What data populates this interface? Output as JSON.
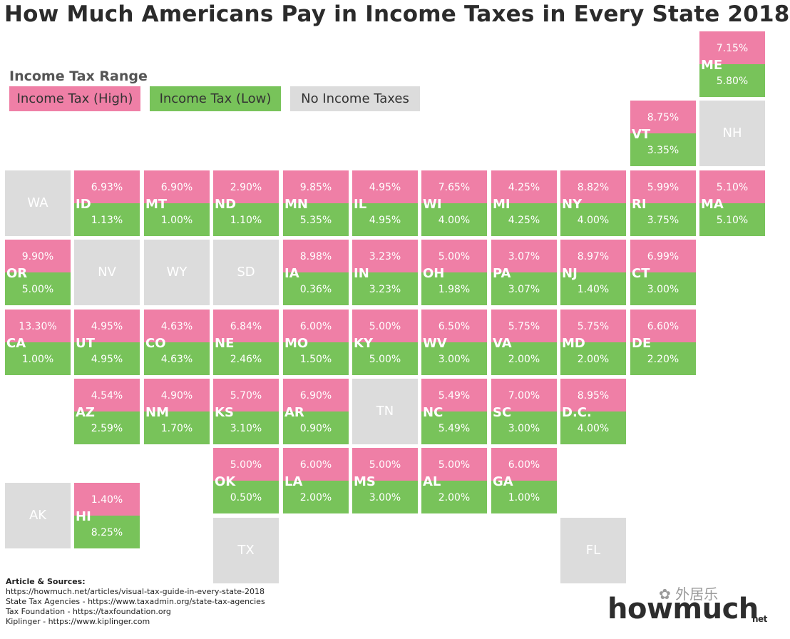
{
  "title": "How Much Americans Pay in Income Taxes in Every State 2018",
  "legend": {
    "title": "Income Tax Range",
    "high": "Income Tax (High)",
    "low": "Income Tax (Low)",
    "none": "No Income Taxes"
  },
  "colors": {
    "high": "#ef7fa6",
    "low": "#78c35a",
    "none": "#dcdcdc"
  },
  "states": [
    {
      "abbr": "ME",
      "row": 0,
      "col": 10,
      "high": "7.15%",
      "low": "5.80%"
    },
    {
      "abbr": "VT",
      "row": 1,
      "col": 9,
      "high": "8.75%",
      "low": "3.35%"
    },
    {
      "abbr": "NH",
      "row": 1,
      "col": 10,
      "none": true
    },
    {
      "abbr": "WA",
      "row": 2,
      "col": 0,
      "none": true
    },
    {
      "abbr": "ID",
      "row": 2,
      "col": 1,
      "high": "6.93%",
      "low": "1.13%"
    },
    {
      "abbr": "MT",
      "row": 2,
      "col": 2,
      "high": "6.90%",
      "low": "1.00%"
    },
    {
      "abbr": "ND",
      "row": 2,
      "col": 3,
      "high": "2.90%",
      "low": "1.10%"
    },
    {
      "abbr": "MN",
      "row": 2,
      "col": 4,
      "high": "9.85%",
      "low": "5.35%"
    },
    {
      "abbr": "IL",
      "row": 2,
      "col": 5,
      "high": "4.95%",
      "low": "4.95%"
    },
    {
      "abbr": "WI",
      "row": 2,
      "col": 6,
      "high": "7.65%",
      "low": "4.00%"
    },
    {
      "abbr": "MI",
      "row": 2,
      "col": 7,
      "high": "4.25%",
      "low": "4.25%"
    },
    {
      "abbr": "NY",
      "row": 2,
      "col": 8,
      "high": "8.82%",
      "low": "4.00%"
    },
    {
      "abbr": "RI",
      "row": 2,
      "col": 9,
      "high": "5.99%",
      "low": "3.75%"
    },
    {
      "abbr": "MA",
      "row": 2,
      "col": 10,
      "high": "5.10%",
      "low": "5.10%"
    },
    {
      "abbr": "OR",
      "row": 3,
      "col": 0,
      "high": "9.90%",
      "low": "5.00%"
    },
    {
      "abbr": "NV",
      "row": 3,
      "col": 1,
      "none": true
    },
    {
      "abbr": "WY",
      "row": 3,
      "col": 2,
      "none": true
    },
    {
      "abbr": "SD",
      "row": 3,
      "col": 3,
      "none": true
    },
    {
      "abbr": "IA",
      "row": 3,
      "col": 4,
      "high": "8.98%",
      "low": "0.36%"
    },
    {
      "abbr": "IN",
      "row": 3,
      "col": 5,
      "high": "3.23%",
      "low": "3.23%"
    },
    {
      "abbr": "OH",
      "row": 3,
      "col": 6,
      "high": "5.00%",
      "low": "1.98%"
    },
    {
      "abbr": "PA",
      "row": 3,
      "col": 7,
      "high": "3.07%",
      "low": "3.07%"
    },
    {
      "abbr": "NJ",
      "row": 3,
      "col": 8,
      "high": "8.97%",
      "low": "1.40%"
    },
    {
      "abbr": "CT",
      "row": 3,
      "col": 9,
      "high": "6.99%",
      "low": "3.00%"
    },
    {
      "abbr": "CA",
      "row": 4,
      "col": 0,
      "high": "13.30%",
      "low": "1.00%"
    },
    {
      "abbr": "UT",
      "row": 4,
      "col": 1,
      "high": "4.95%",
      "low": "4.95%"
    },
    {
      "abbr": "CO",
      "row": 4,
      "col": 2,
      "high": "4.63%",
      "low": "4.63%"
    },
    {
      "abbr": "NE",
      "row": 4,
      "col": 3,
      "high": "6.84%",
      "low": "2.46%"
    },
    {
      "abbr": "MO",
      "row": 4,
      "col": 4,
      "high": "6.00%",
      "low": "1.50%"
    },
    {
      "abbr": "KY",
      "row": 4,
      "col": 5,
      "high": "5.00%",
      "low": "5.00%"
    },
    {
      "abbr": "WV",
      "row": 4,
      "col": 6,
      "high": "6.50%",
      "low": "3.00%"
    },
    {
      "abbr": "VA",
      "row": 4,
      "col": 7,
      "high": "5.75%",
      "low": "2.00%"
    },
    {
      "abbr": "MD",
      "row": 4,
      "col": 8,
      "high": "5.75%",
      "low": "2.00%"
    },
    {
      "abbr": "DE",
      "row": 4,
      "col": 9,
      "high": "6.60%",
      "low": "2.20%"
    },
    {
      "abbr": "AZ",
      "row": 5,
      "col": 1,
      "high": "4.54%",
      "low": "2.59%"
    },
    {
      "abbr": "NM",
      "row": 5,
      "col": 2,
      "high": "4.90%",
      "low": "1.70%"
    },
    {
      "abbr": "KS",
      "row": 5,
      "col": 3,
      "high": "5.70%",
      "low": "3.10%"
    },
    {
      "abbr": "AR",
      "row": 5,
      "col": 4,
      "high": "6.90%",
      "low": "0.90%"
    },
    {
      "abbr": "TN",
      "row": 5,
      "col": 5,
      "none": true
    },
    {
      "abbr": "NC",
      "row": 5,
      "col": 6,
      "high": "5.49%",
      "low": "5.49%"
    },
    {
      "abbr": "SC",
      "row": 5,
      "col": 7,
      "high": "7.00%",
      "low": "3.00%"
    },
    {
      "abbr": "D.C.",
      "row": 5,
      "col": 8,
      "high": "8.95%",
      "low": "4.00%"
    },
    {
      "abbr": "OK",
      "row": 6,
      "col": 3,
      "high": "5.00%",
      "low": "0.50%"
    },
    {
      "abbr": "LA",
      "row": 6,
      "col": 4,
      "high": "6.00%",
      "low": "2.00%"
    },
    {
      "abbr": "MS",
      "row": 6,
      "col": 5,
      "high": "5.00%",
      "low": "3.00%"
    },
    {
      "abbr": "AL",
      "row": 6,
      "col": 6,
      "high": "5.00%",
      "low": "2.00%"
    },
    {
      "abbr": "GA",
      "row": 6,
      "col": 7,
      "high": "6.00%",
      "low": "1.00%"
    },
    {
      "abbr": "AK",
      "row": 6.5,
      "col": 0,
      "none": true
    },
    {
      "abbr": "HI",
      "row": 6.5,
      "col": 1,
      "high": "1.40%",
      "low": "8.25%"
    },
    {
      "abbr": "TX",
      "row": 7,
      "col": 3,
      "none": true
    },
    {
      "abbr": "FL",
      "row": 7,
      "col": 8,
      "none": true
    }
  ],
  "sources": {
    "heading": "Article & Sources:",
    "lines": [
      "https://howmuch.net/articles/visual-tax-guide-in-every-state-2018",
      "State Tax Agencies - https://www.taxadmin.org/state-tax-agencies",
      "Tax Foundation - https://taxfoundation.org",
      "Kiplinger - https://www.kiplinger.com"
    ]
  },
  "watermark": "外居乐",
  "logo": {
    "main": "howmuch",
    "suffix": "net"
  }
}
